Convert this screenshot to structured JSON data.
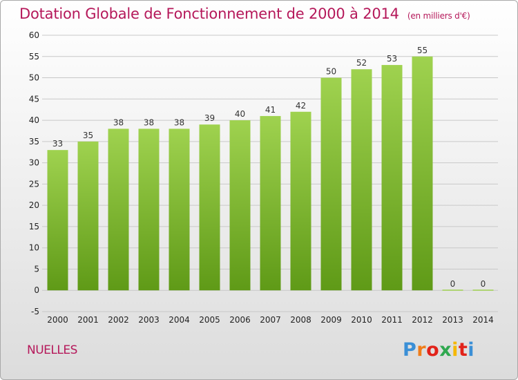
{
  "header": {
    "title": "Dotation Globale de Fonctionnement de 2000 à 2014",
    "unit": "(en milliers d'€)"
  },
  "footer": {
    "commune": "NUELLES",
    "logo_text": "Proxiti",
    "logo_colors": [
      "#3a8fd6",
      "#f07d1a",
      "#e2231a",
      "#2fa84f",
      "#f5b800",
      "#e2231a",
      "#3a8fd6"
    ]
  },
  "colors": {
    "bar_top": "#9fd24f",
    "bar_bottom": "#5f9a17",
    "title": "#b5185a"
  },
  "chart_data": {
    "type": "bar",
    "categories": [
      "2000",
      "2001",
      "2002",
      "2003",
      "2004",
      "2005",
      "2006",
      "2007",
      "2008",
      "2009",
      "2010",
      "2011",
      "2012",
      "2013",
      "2014"
    ],
    "values": [
      33,
      35,
      38,
      38,
      38,
      39,
      40,
      41,
      42,
      50,
      52,
      53,
      55,
      0,
      0
    ],
    "title": "Dotation Globale de Fonctionnement de 2000 à 2014",
    "subtitle": "(en milliers d'€)",
    "xlabel": "",
    "ylabel": "",
    "ylim": [
      -5,
      60
    ],
    "yticks": [
      -5,
      0,
      5,
      10,
      15,
      20,
      25,
      30,
      35,
      40,
      45,
      50,
      55,
      60
    ],
    "grid": true
  }
}
